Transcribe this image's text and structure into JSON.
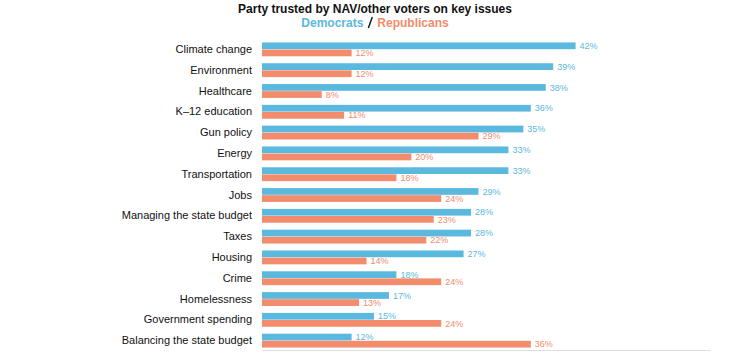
{
  "chart_data": {
    "type": "bar",
    "orientation": "horizontal",
    "title": "Party trusted by NAV/other voters on key issues",
    "categories": [
      "Climate change",
      "Environment",
      "Healthcare",
      "K–12 education",
      "Gun policy",
      "Energy",
      "Transportation",
      "Jobs",
      "Managing the state budget",
      "Taxes",
      "Housing",
      "Crime",
      "Homelessness",
      "Government spending",
      "Balancing the state budget"
    ],
    "series": [
      {
        "name": "Democrats",
        "color": "#5bb8de",
        "values": [
          42,
          39,
          38,
          36,
          35,
          33,
          33,
          29,
          28,
          28,
          27,
          18,
          17,
          15,
          12
        ],
        "value_labels": [
          "42%",
          "39%",
          "38%",
          "36%",
          "35%",
          "33%",
          "33%",
          "29%",
          "28%",
          "28%",
          "27%",
          "18%",
          "17%",
          "15%",
          "12%"
        ]
      },
      {
        "name": "Republicans",
        "color": "#f28c6c",
        "values": [
          12,
          12,
          8,
          11,
          29,
          20,
          18,
          24,
          23,
          22,
          14,
          24,
          13,
          24,
          36
        ],
        "value_labels": [
          "12%",
          "12%",
          "8%",
          "11%",
          "29%",
          "20%",
          "18%",
          "24%",
          "23%",
          "22%",
          "14%",
          "24%",
          "13%",
          "24%",
          "36%"
        ]
      }
    ],
    "xlim": [
      0,
      60
    ],
    "xticks": [],
    "data_labels": true,
    "tick_labels": "y",
    "legend": "top",
    "grid": false
  }
}
